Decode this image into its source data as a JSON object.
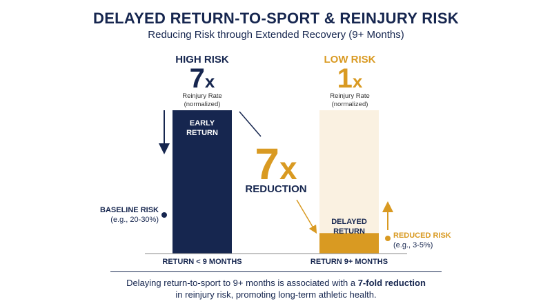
{
  "header": {
    "title": "DELAYED RETURN-TO-SPORT & REINJURY RISK",
    "subtitle": "Reducing Risk through Extended Recovery (9+ Months)"
  },
  "panels": {
    "high": {
      "label": "HIGH RISK",
      "value": "7",
      "suffix": "x",
      "caption_line1": "Reinjury Rate",
      "caption_line2": "(normalized)"
    },
    "low": {
      "label": "LOW RISK",
      "value": "1",
      "suffix": "x",
      "caption_line1": "Reinjury Rate",
      "caption_line2": "(normalized)"
    }
  },
  "bars": {
    "early_line1": "EARLY",
    "early_line2": "RETURN",
    "delayed_line1": "DELAYED",
    "delayed_line2": "RETURN"
  },
  "reduction": {
    "value": "7",
    "suffix": "x",
    "label": "REDUCTION"
  },
  "annotations": {
    "baseline_line1": "BASELINE RISK",
    "baseline_line2": "(e.g., 20-30%)",
    "reduced_line1": "REDUCED RISK",
    "reduced_line2": "(e.g., 3-5%)"
  },
  "footer": {
    "line1_pre": "Delaying return-to-sport to 9+ months is associated with a ",
    "line1_bold": "7-fold reduction",
    "line2": "in reinjury risk, promoting long-term athletic health."
  },
  "colors": {
    "navy": "#16264f",
    "gold": "#d99a22",
    "bar_bg": "#faf1e1"
  },
  "chart_data": {
    "type": "bar",
    "title": "DELAYED RETURN-TO-SPORT & REINJURY RISK",
    "subtitle": "Reducing Risk through Extended Recovery (9+ Months)",
    "categories": [
      "RETURN < 9 MONTHS",
      "RETURN 9+ MONTHS"
    ],
    "values": [
      7,
      1
    ],
    "ylim": [
      0,
      7
    ],
    "grid": false
  }
}
